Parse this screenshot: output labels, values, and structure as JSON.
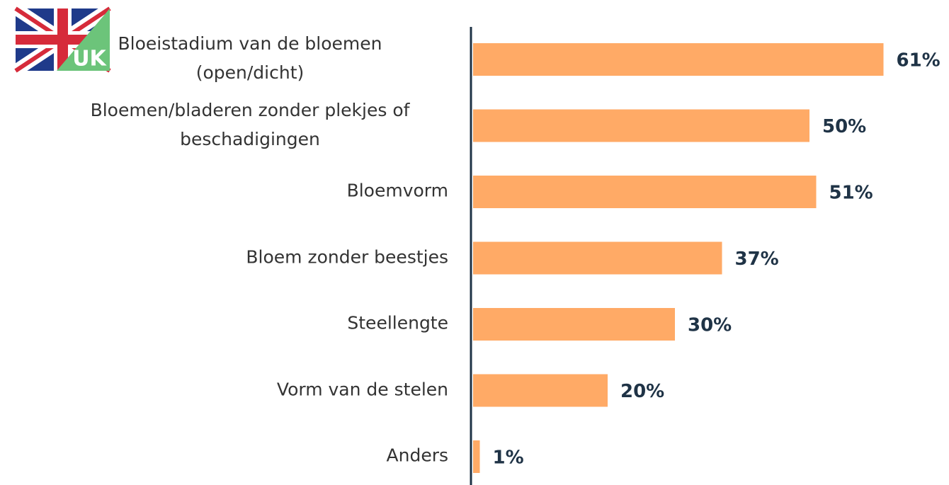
{
  "chart_data": {
    "type": "bar",
    "orientation": "horizontal",
    "flag_label": "UK",
    "categories": [
      "Bloeistadium van de bloemen\n(open/dicht)",
      "Bloemen/bladeren zonder plekjes of\nbeschadigingen",
      "Bloemvorm",
      "Bloem zonder beestjes",
      "Steellengte",
      "Vorm van de stelen",
      "Anders"
    ],
    "values": [
      61,
      50,
      51,
      37,
      30,
      20,
      1
    ],
    "value_labels": [
      "61%",
      "50%",
      "51%",
      "37%",
      "30%",
      "20%",
      "1%"
    ],
    "color": "#ffaa66"
  }
}
